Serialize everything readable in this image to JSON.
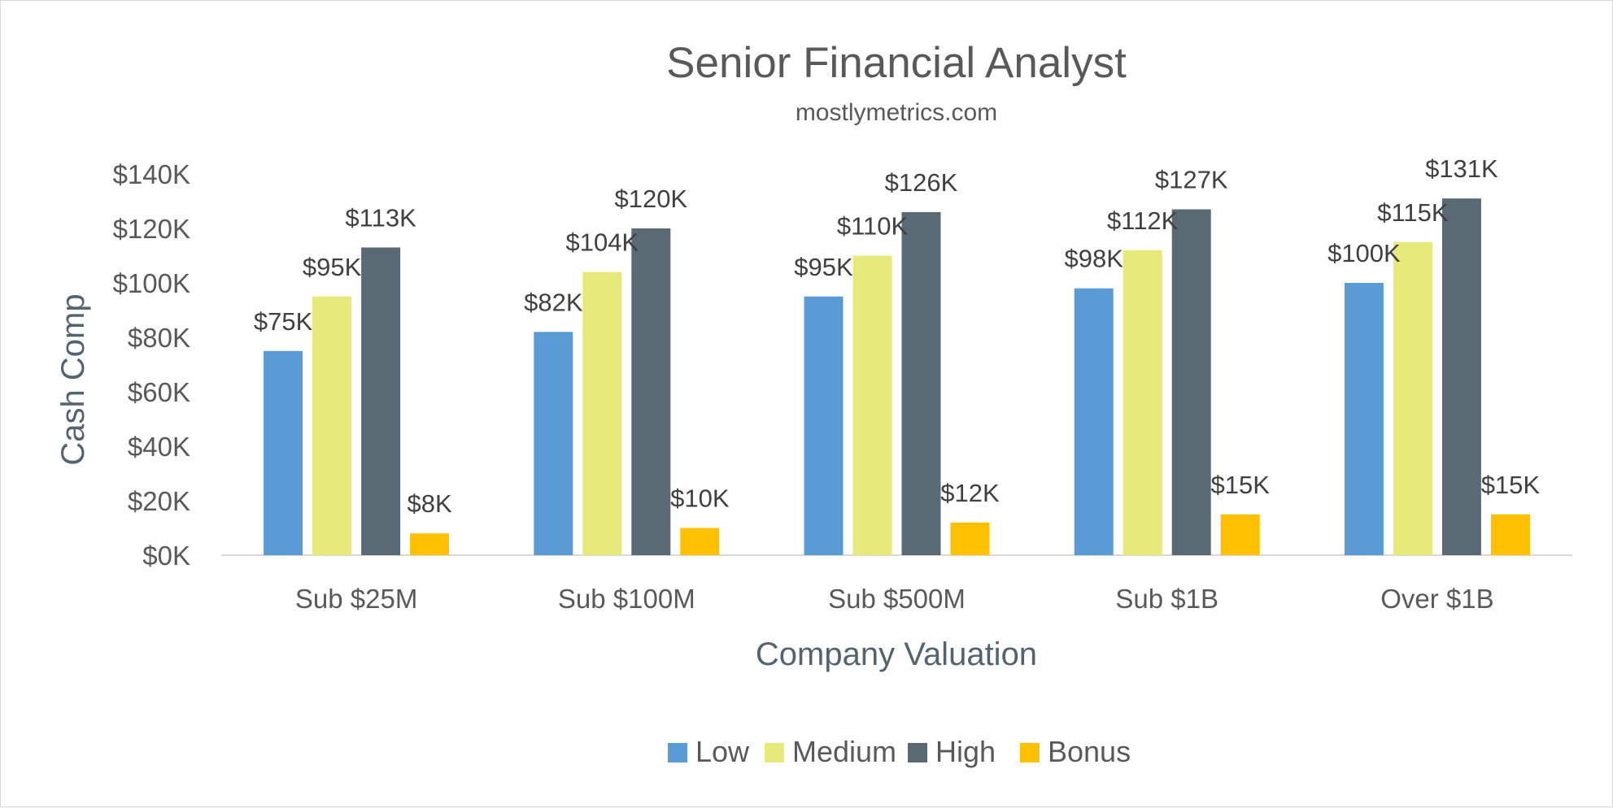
{
  "chart_data": {
    "type": "bar",
    "title": "Senior Financial Analyst",
    "subtitle": "mostlymetrics.com",
    "xlabel": "Company Valuation",
    "ylabel": "Cash Comp",
    "categories": [
      "Sub $25M",
      "Sub $100M",
      "Sub $500M",
      "Sub $1B",
      "Over $1B"
    ],
    "series": [
      {
        "name": "Low",
        "color": "#5b9bd5",
        "values": [
          75,
          82,
          95,
          98,
          100
        ],
        "labels": [
          "$75K",
          "$82K",
          "$95K",
          "$98K",
          "$100K"
        ]
      },
      {
        "name": "Medium",
        "color": "#e5ea7b",
        "values": [
          95,
          104,
          110,
          112,
          115
        ],
        "labels": [
          "$95K",
          "$104K",
          "$110K",
          "$112K",
          "$115K"
        ]
      },
      {
        "name": "High",
        "color": "#596a75",
        "values": [
          113,
          120,
          126,
          127,
          131
        ],
        "labels": [
          "$113K",
          "$120K",
          "$126K",
          "$127K",
          "$131K"
        ]
      },
      {
        "name": "Bonus",
        "color": "#ffc000",
        "values": [
          8,
          10,
          12,
          15,
          15
        ],
        "labels": [
          "$8K",
          "$10K",
          "$12K",
          "$15K",
          "$15K"
        ]
      }
    ],
    "ylim": [
      0,
      140
    ],
    "yticks": [
      0,
      20,
      40,
      60,
      80,
      100,
      120,
      140
    ],
    "ytick_labels": [
      "$0K",
      "$20K",
      "$40K",
      "$60K",
      "$80K",
      "$100K",
      "$120K",
      "$140K"
    ],
    "grid": false,
    "legend_position": "bottom"
  }
}
